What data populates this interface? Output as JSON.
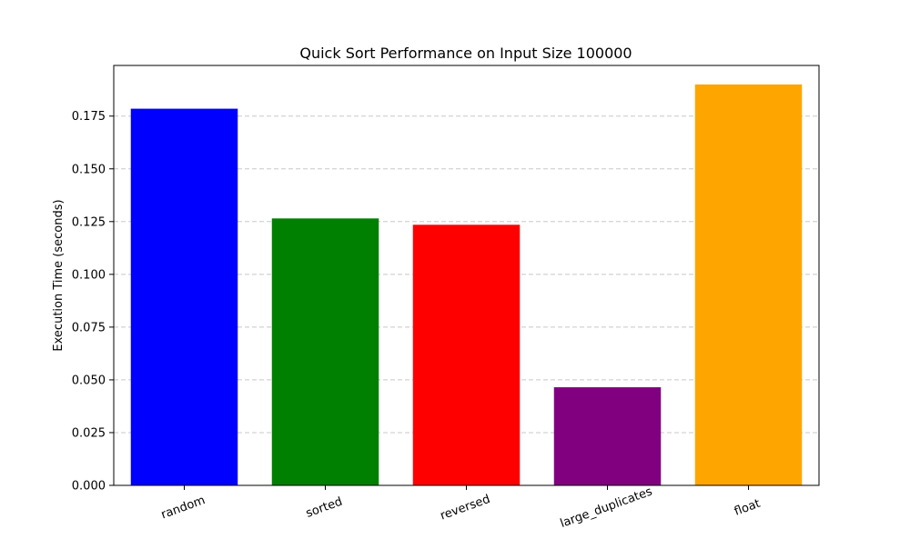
{
  "chart_data": {
    "type": "bar",
    "title": "Quick Sort Performance on Input Size 100000",
    "xlabel": "",
    "ylabel": "Execution Time (seconds)",
    "categories": [
      "random",
      "sorted",
      "reversed",
      "large_duplicates",
      "float"
    ],
    "values": [
      0.1785,
      0.1265,
      0.1235,
      0.0465,
      0.19
    ],
    "colors": [
      "#0000ff",
      "#008000",
      "#ff0000",
      "#800080",
      "#ffa500"
    ],
    "ylim": [
      0,
      0.199
    ],
    "yticks": [
      0.0,
      0.025,
      0.05,
      0.075,
      0.1,
      0.125,
      0.15,
      0.175
    ],
    "ytick_labels": [
      "0.000",
      "0.025",
      "0.050",
      "0.075",
      "0.100",
      "0.125",
      "0.150",
      "0.175"
    ],
    "grid": "y-dashed",
    "x_tick_rotation": "-20deg"
  }
}
